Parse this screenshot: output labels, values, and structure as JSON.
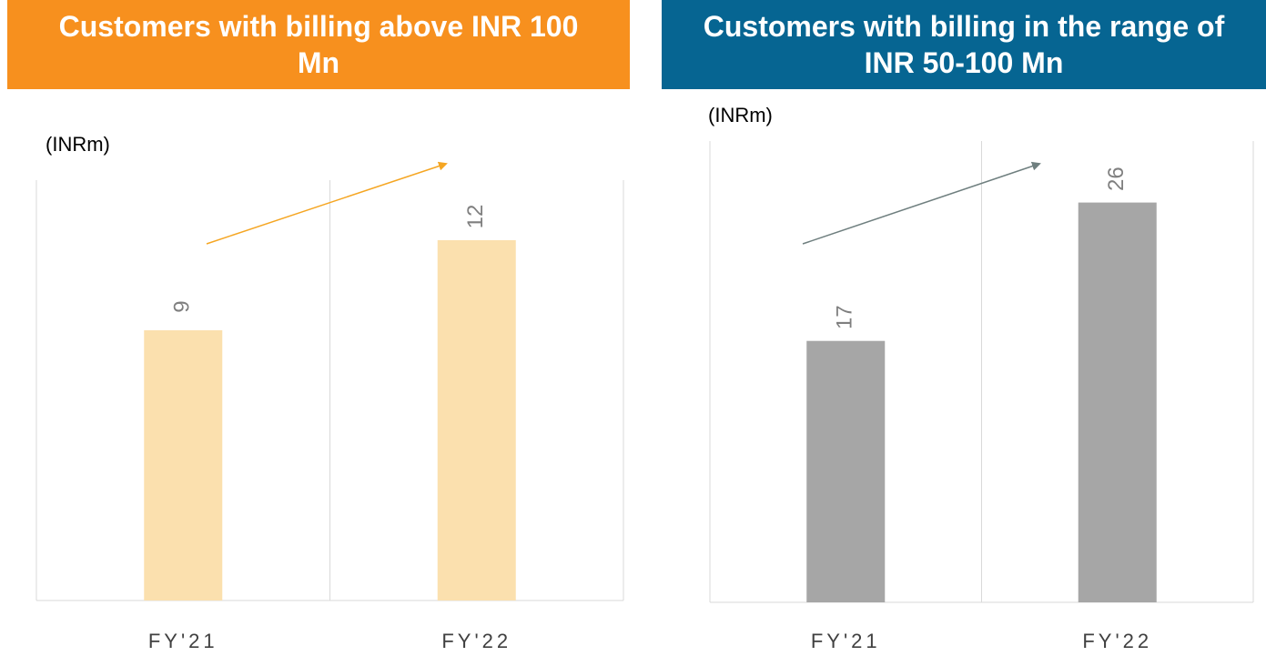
{
  "chart_data": [
    {
      "type": "bar",
      "title": "Customers with billing above INR 100 Mn",
      "unit_label": "(INRm)",
      "categories": [
        "FY'21",
        "FY'22"
      ],
      "values": [
        9,
        12
      ],
      "color": "#fbe0ae",
      "header_color": "#f7901e",
      "arrow_color": "#f5a623",
      "ylim": [
        0,
        14
      ]
    },
    {
      "type": "bar",
      "title": "Customers with billing in the range of INR 50-100 Mn",
      "unit_label": "(INRm)",
      "categories": [
        "FY'21",
        "FY'22"
      ],
      "values": [
        17,
        26
      ],
      "color": "#a6a6a6",
      "header_color": "#066592",
      "arrow_color": "#6f7f7f",
      "ylim": [
        0,
        30
      ]
    }
  ]
}
